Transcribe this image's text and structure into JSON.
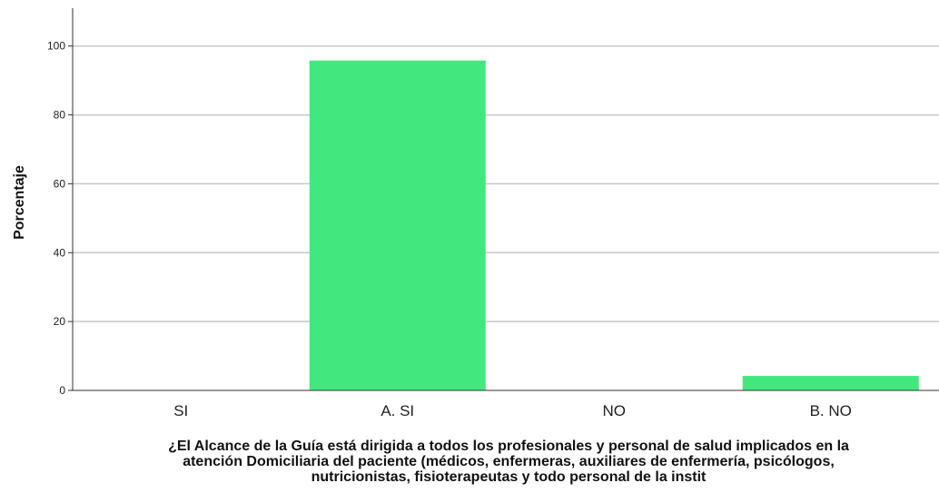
{
  "chart_data": {
    "type": "bar",
    "title": "",
    "categories": [
      "SI",
      "A. SI",
      "NO",
      "B. NO"
    ],
    "values": [
      0,
      95.8,
      0,
      4.2
    ],
    "ylabel": "Porcentaje",
    "xlabel_lines": [
      "¿El Alcance de la Guía está dirigida a todos los profesionales y personal de salud implicados en la",
      "atención Domiciliaria del paciente (médicos, enfermeras, auxiliares de enfermería, psicólogos,",
      "nutricionistas, fisioterapeutas y todo personal de la instit"
    ],
    "ylim": [
      0,
      111
    ],
    "yticks": [
      0,
      20,
      40,
      60,
      80,
      100
    ],
    "grid": true,
    "legend": "none",
    "bar_color": "#42e87e",
    "grid_color": "#c8c8c8",
    "axis_color": "#333333"
  }
}
